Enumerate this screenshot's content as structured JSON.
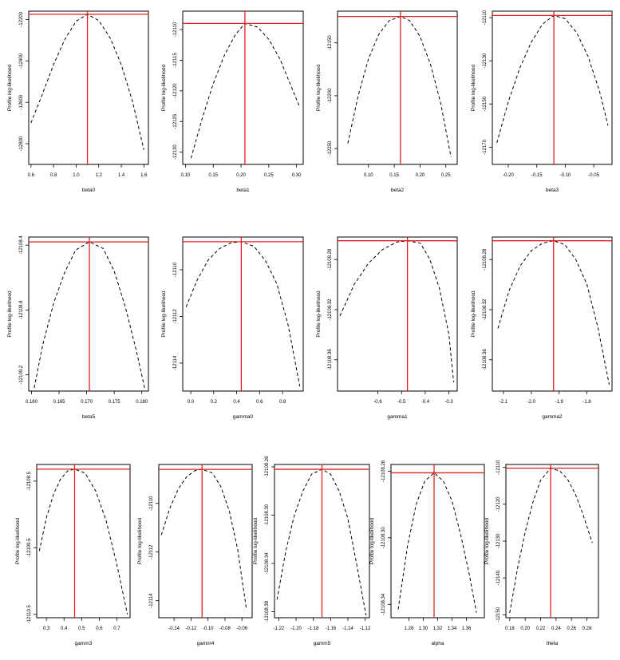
{
  "figure": {
    "colors": {
      "curve": "#000000",
      "mle_lines": "#e0201c",
      "frame": "#000000"
    }
  },
  "chart_data": [
    {
      "type": "line",
      "xlabel": "beta0",
      "ylabel": "Profile log-likelihood",
      "xlim": [
        0.58,
        1.64
      ],
      "ylim": [
        -12900,
        -12160
      ],
      "xticks": [
        "0.6",
        "0.8",
        "1.0",
        "1.2",
        "1.4",
        "1.6"
      ],
      "xtick_values": [
        0.6,
        0.8,
        1.0,
        1.2,
        1.4,
        1.6
      ],
      "yticks": [
        "-12200",
        "-12400",
        "-12600",
        "-12800"
      ],
      "ytick_values": [
        -12200,
        -12400,
        -12600,
        -12800
      ],
      "mle": {
        "x": 1.1,
        "y": -12175
      },
      "series": [
        {
          "x": [
            0.6,
            0.7,
            0.8,
            0.9,
            1.0,
            1.1,
            1.2,
            1.3,
            1.4,
            1.5,
            1.6
          ],
          "y": [
            -12700,
            -12562,
            -12418,
            -12296,
            -12208,
            -12175,
            -12205,
            -12288,
            -12418,
            -12598,
            -12830
          ]
        }
      ]
    },
    {
      "type": "line",
      "xlabel": "beta1",
      "ylabel": "Profile log-likelihood",
      "xlim": [
        0.095,
        0.312
      ],
      "ylim": [
        -12132,
        -12107
      ],
      "xticks": [
        "0.10",
        "0.15",
        "0.20",
        "0.25",
        "0.30"
      ],
      "xtick_values": [
        0.1,
        0.15,
        0.2,
        0.25,
        0.3
      ],
      "yticks": [
        "-12110",
        "-12115",
        "-12120",
        "-12125",
        "-12130"
      ],
      "ytick_values": [
        -12110,
        -12115,
        -12120,
        -12125,
        -12130
      ],
      "mle": {
        "x": 0.207,
        "y": -12109
      },
      "series": [
        {
          "x": [
            0.11,
            0.13,
            0.15,
            0.17,
            0.19,
            0.207,
            0.23,
            0.25,
            0.27,
            0.29,
            0.305
          ],
          "y": [
            -12131,
            -12124.5,
            -12118.8,
            -12114.2,
            -12110.8,
            -12109,
            -12109.6,
            -12111.6,
            -12114.8,
            -12119.2,
            -12122.5
          ]
        }
      ]
    },
    {
      "type": "line",
      "xlabel": "beta2",
      "ylabel": "Profile log-likelihood",
      "xlim": [
        0.04,
        0.272
      ],
      "ylim": [
        -12265,
        -12120
      ],
      "xticks": [
        "0.10",
        "0.15",
        "0.20",
        "0.25"
      ],
      "xtick_values": [
        0.1,
        0.15,
        0.2,
        0.25
      ],
      "yticks": [
        "-12150",
        "-12200",
        "-12250"
      ],
      "ytick_values": [
        -12150,
        -12200,
        -12250
      ],
      "mle": {
        "x": 0.162,
        "y": -12125
      },
      "series": [
        {
          "x": [
            0.06,
            0.08,
            0.1,
            0.12,
            0.14,
            0.162,
            0.18,
            0.2,
            0.22,
            0.24,
            0.26
          ],
          "y": [
            -12245,
            -12200,
            -12165,
            -12142,
            -12129,
            -12125,
            -12129,
            -12144,
            -12170,
            -12207,
            -12258
          ]
        }
      ]
    },
    {
      "type": "line",
      "xlabel": "beta3",
      "ylabel": "Profile log-likelihood",
      "xlim": [
        -0.228,
        -0.018
      ],
      "ylim": [
        -12178,
        -12107
      ],
      "xticks": [
        "-0.20",
        "-0.15",
        "-0.10",
        "-0.05"
      ],
      "xtick_values": [
        -0.2,
        -0.15,
        -0.1,
        -0.05
      ],
      "yticks": [
        "-12110",
        "-12130",
        "-12150",
        "-12170"
      ],
      "ytick_values": [
        -12110,
        -12130,
        -12150,
        -12170
      ],
      "mle": {
        "x": -0.12,
        "y": -12109
      },
      "series": [
        {
          "x": [
            -0.22,
            -0.2,
            -0.18,
            -0.16,
            -0.14,
            -0.12,
            -0.1,
            -0.08,
            -0.06,
            -0.04,
            -0.025
          ],
          "y": [
            -12168,
            -12149,
            -12133.5,
            -12121.5,
            -12113,
            -12109,
            -12110.5,
            -12117,
            -12128,
            -12144,
            -12160
          ]
        }
      ]
    },
    {
      "type": "line",
      "xlabel": "beta5",
      "ylabel": "Profile log-likelihood",
      "xlim": [
        0.1595,
        0.1812
      ],
      "ylim": [
        -12109.3,
        -12108.35
      ],
      "xticks": [
        "0.160",
        "0.165",
        "0.170",
        "0.175",
        "0.180"
      ],
      "xtick_values": [
        0.16,
        0.165,
        0.17,
        0.175,
        0.18
      ],
      "yticks": [
        "-12108.4",
        "-12108.8",
        "-12109.2"
      ],
      "ytick_values": [
        -12108.4,
        -12108.8,
        -12109.2
      ],
      "mle": {
        "x": 0.1705,
        "y": -12108.38
      },
      "series": [
        {
          "x": [
            0.1605,
            0.162,
            0.164,
            0.166,
            0.168,
            0.1705,
            0.173,
            0.175,
            0.177,
            0.179,
            0.1805
          ],
          "y": [
            -12109.28,
            -12109.02,
            -12108.76,
            -12108.57,
            -12108.43,
            -12108.38,
            -12108.42,
            -12108.56,
            -12108.78,
            -12109.05,
            -12109.28
          ]
        }
      ]
    },
    {
      "type": "line",
      "xlabel": "gamma0",
      "ylabel": "Profile log-likelihood",
      "xlim": [
        -0.07,
        0.98
      ],
      "ylim": [
        -12115.2,
        -12108.6
      ],
      "xticks": [
        "0.0",
        "0.2",
        "0.4",
        "0.6",
        "0.8"
      ],
      "xtick_values": [
        0.0,
        0.2,
        0.4,
        0.6,
        0.8
      ],
      "yticks": [
        "-12110",
        "-12112",
        "-12114"
      ],
      "ytick_values": [
        -12110,
        -12112,
        -12114
      ],
      "mle": {
        "x": 0.44,
        "y": -12108.8
      },
      "series": [
        {
          "x": [
            -0.04,
            0.05,
            0.15,
            0.25,
            0.35,
            0.44,
            0.55,
            0.65,
            0.75,
            0.85,
            0.95
          ],
          "y": [
            -12111.6,
            -12110.5,
            -12109.6,
            -12109.1,
            -12108.85,
            -12108.8,
            -12109.0,
            -12109.6,
            -12110.6,
            -12112.4,
            -12115.0
          ]
        }
      ]
    },
    {
      "type": "line",
      "xlabel": "gamma1",
      "ylabel": "Profile log-likelihood",
      "xlim": [
        -0.77,
        -0.265
      ],
      "ylim": [
        -12108.385,
        -12108.262
      ],
      "xticks": [
        "-0.6",
        "-0.5",
        "-0.4",
        "-0.3"
      ],
      "xtick_values": [
        -0.6,
        -0.5,
        -0.4,
        -0.3
      ],
      "yticks": [
        "-12108.28",
        "-12108.32",
        "-12108.36"
      ],
      "ytick_values": [
        -12108.28,
        -12108.32,
        -12108.36
      ],
      "mle": {
        "x": -0.475,
        "y": -12108.265
      },
      "series": [
        {
          "x": [
            -0.76,
            -0.7,
            -0.64,
            -0.58,
            -0.52,
            -0.475,
            -0.42,
            -0.38,
            -0.34,
            -0.3,
            -0.28
          ],
          "y": [
            -12108.325,
            -12108.3,
            -12108.283,
            -12108.272,
            -12108.266,
            -12108.265,
            -12108.267,
            -12108.28,
            -12108.303,
            -12108.34,
            -12108.378
          ]
        }
      ]
    },
    {
      "type": "line",
      "xlabel": "gamma2",
      "ylabel": "Profile log-likelihood",
      "xlim": [
        -2.14,
        -1.71
      ],
      "ylim": [
        -12108.385,
        -12108.262
      ],
      "xticks": [
        "-2.1",
        "-2.0",
        "-1.9",
        "-1.8"
      ],
      "xtick_values": [
        -2.1,
        -2.0,
        -1.9,
        -1.8
      ],
      "yticks": [
        "-12108.28",
        "-12108.32",
        "-12108.36"
      ],
      "ytick_values": [
        -12108.28,
        -12108.32,
        -12108.36
      ],
      "mle": {
        "x": -1.92,
        "y": -12108.265
      },
      "series": [
        {
          "x": [
            -2.12,
            -2.08,
            -2.04,
            -2.0,
            -1.96,
            -1.92,
            -1.88,
            -1.84,
            -1.8,
            -1.76,
            -1.72
          ],
          "y": [
            -12108.335,
            -12108.305,
            -12108.285,
            -12108.273,
            -12108.267,
            -12108.265,
            -12108.268,
            -12108.28,
            -12108.3,
            -12108.335,
            -12108.38
          ]
        }
      ]
    },
    {
      "type": "line",
      "xlabel": "gamm3",
      "ylabel": "Profile log-likelihood",
      "xlim": [
        0.245,
        0.775
      ],
      "ylim": [
        -12110.55,
        -12108.25
      ],
      "xticks": [
        "0.3",
        "0.4",
        "0.5",
        "0.6",
        "0.7"
      ],
      "xtick_values": [
        0.3,
        0.4,
        0.5,
        0.6,
        0.7
      ],
      "yticks": [
        "-12108.5",
        "-12109.5",
        "-12110.5"
      ],
      "ytick_values": [
        -12108.5,
        -12109.5,
        -12110.5
      ],
      "mle": {
        "x": 0.46,
        "y": -12108.32
      },
      "series": [
        {
          "x": [
            0.26,
            0.3,
            0.34,
            0.38,
            0.42,
            0.46,
            0.52,
            0.58,
            0.64,
            0.7,
            0.76
          ],
          "y": [
            -12109.55,
            -12109.05,
            -12108.7,
            -12108.47,
            -12108.35,
            -12108.32,
            -12108.38,
            -12108.65,
            -12109.1,
            -12109.75,
            -12110.5
          ]
        }
      ]
    },
    {
      "type": "line",
      "xlabel": "gamm4",
      "ylabel": "Profile log-likelihood",
      "xlim": [
        -0.158,
        -0.048
      ],
      "ylim": [
        -12114.7,
        -12108.4
      ],
      "xticks": [
        "-0.14",
        "-0.12",
        "-0.10",
        "-0.08",
        "-0.06"
      ],
      "xtick_values": [
        -0.14,
        -0.12,
        -0.1,
        -0.08,
        -0.06
      ],
      "yticks": [
        "-12110",
        "-12112",
        "-12114"
      ],
      "ytick_values": [
        -12110,
        -12112,
        -12114
      ],
      "mle": {
        "x": -0.107,
        "y": -12108.6
      },
      "series": [
        {
          "x": [
            -0.155,
            -0.145,
            -0.135,
            -0.125,
            -0.115,
            -0.107,
            -0.095,
            -0.085,
            -0.075,
            -0.065,
            -0.055
          ],
          "y": [
            -12111.3,
            -12110.2,
            -12109.4,
            -12108.9,
            -12108.65,
            -12108.6,
            -12108.75,
            -12109.3,
            -12110.3,
            -12111.9,
            -12114.3
          ]
        }
      ]
    },
    {
      "type": "line",
      "xlabel": "gamm5",
      "ylabel": "Profile log-likelihood",
      "xlim": [
        -1.225,
        -1.115
      ],
      "ylim": [
        -12108.385,
        -12108.258
      ],
      "xticks": [
        "-1.22",
        "-1.20",
        "-1.18",
        "-1.16",
        "-1.14",
        "-1.12"
      ],
      "xtick_values": [
        -1.22,
        -1.2,
        -1.18,
        -1.16,
        -1.14,
        -1.12
      ],
      "yticks": [
        "-12108.26",
        "-12108.30",
        "-12108.34",
        "-12108.38"
      ],
      "ytick_values": [
        -12108.26,
        -12108.3,
        -12108.34,
        -12108.38
      ],
      "mle": {
        "x": -1.17,
        "y": -12108.262
      },
      "series": [
        {
          "x": [
            -1.222,
            -1.212,
            -1.202,
            -1.192,
            -1.182,
            -1.17,
            -1.16,
            -1.15,
            -1.14,
            -1.13,
            -1.119
          ],
          "y": [
            -12108.37,
            -12108.33,
            -12108.3,
            -12108.28,
            -12108.266,
            -12108.262,
            -12108.266,
            -12108.28,
            -12108.303,
            -12108.34,
            -12108.383
          ]
        }
      ]
    },
    {
      "type": "line",
      "xlabel": "alpha",
      "ylabel": "Profile log-likelihood",
      "xlim": [
        1.255,
        1.385
      ],
      "ylim": [
        -12108.348,
        -12108.256
      ],
      "xticks": [
        "1.28",
        "1.30",
        "1.32",
        "1.34",
        "1.36"
      ],
      "xtick_values": [
        1.28,
        1.3,
        1.32,
        1.34,
        1.36
      ],
      "yticks": [
        "-12108.26",
        "-12108.30",
        "-12108.34"
      ],
      "ytick_values": [
        -12108.26,
        -12108.3,
        -12108.34
      ],
      "mle": {
        "x": 1.315,
        "y": -12108.261
      },
      "series": [
        {
          "x": [
            1.265,
            1.278,
            1.29,
            1.302,
            1.315,
            1.328,
            1.34,
            1.352,
            1.364,
            1.374
          ],
          "y": [
            -12108.343,
            -12108.305,
            -12108.28,
            -12108.266,
            -12108.261,
            -12108.266,
            -12108.278,
            -12108.298,
            -12108.322,
            -12108.345
          ]
        }
      ]
    },
    {
      "type": "line",
      "xlabel": "theta",
      "ylabel": "Profile log-likelihood",
      "xlim": [
        0.175,
        0.295
      ],
      "ylim": [
        -12150.8,
        -12109.2
      ],
      "xticks": [
        "0.18",
        "0.20",
        "0.22",
        "0.24",
        "0.26",
        "0.28"
      ],
      "xtick_values": [
        0.18,
        0.2,
        0.22,
        0.24,
        0.26,
        0.28
      ],
      "yticks": [
        "-12110",
        "-12120",
        "-12130",
        "-12140",
        "-12150"
      ],
      "ytick_values": [
        -12110,
        -12120,
        -12130,
        -12140,
        -12150
      ],
      "mle": {
        "x": 0.233,
        "y": -12110.2
      },
      "series": [
        {
          "x": [
            0.18,
            0.19,
            0.2,
            0.21,
            0.22,
            0.233,
            0.245,
            0.255,
            0.265,
            0.275,
            0.287
          ],
          "y": [
            -12149.5,
            -12137.5,
            -12127.5,
            -12119.5,
            -12113.5,
            -12110.2,
            -12111.0,
            -12113.2,
            -12117.2,
            -12122.8,
            -12130.5
          ]
        }
      ]
    }
  ]
}
